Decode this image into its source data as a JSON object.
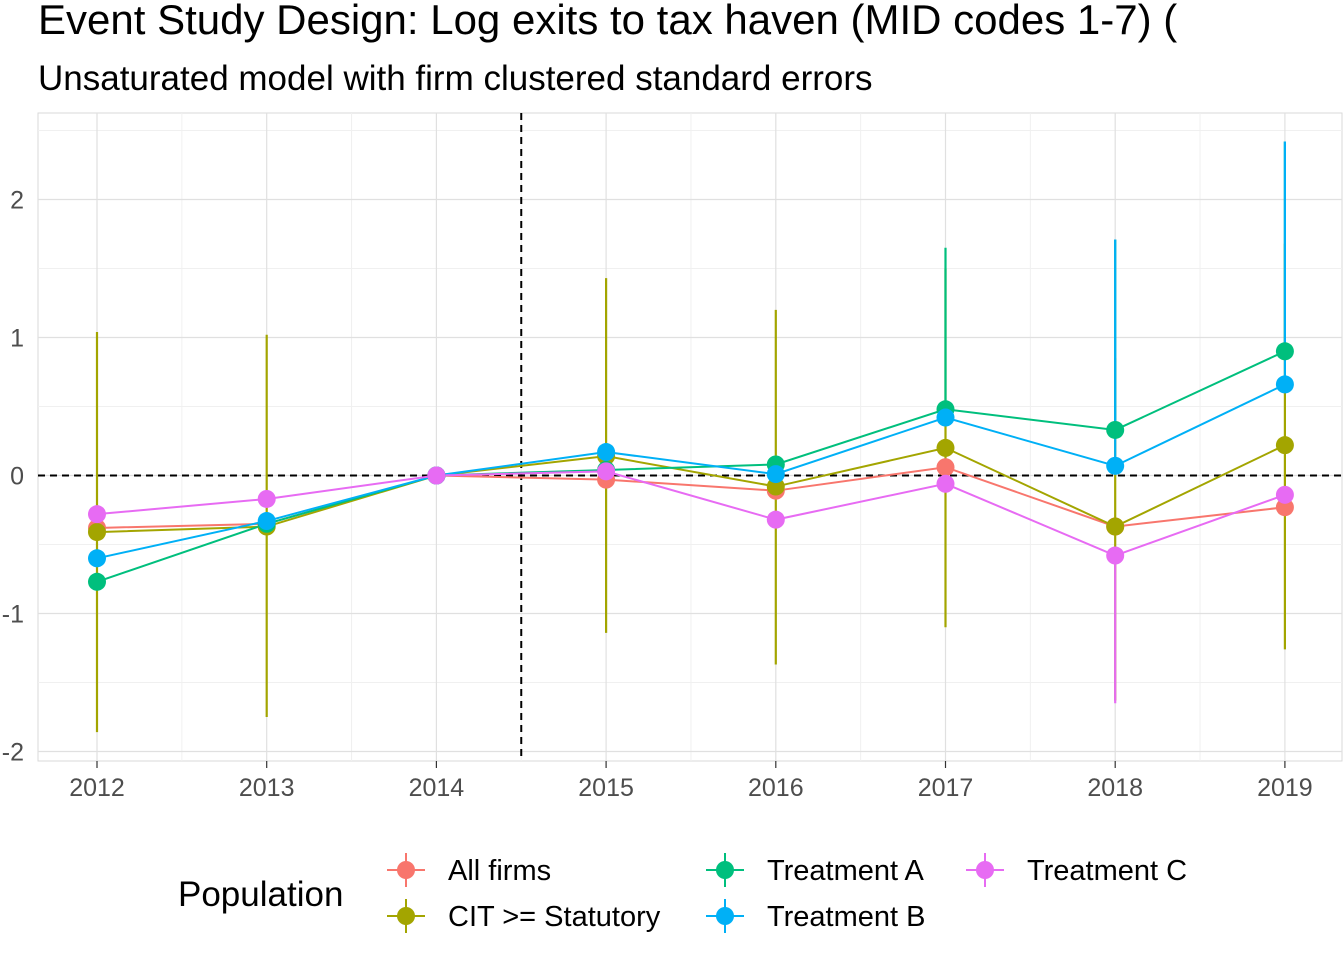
{
  "chart_data": {
    "type": "line",
    "title": "Event Study Design: Log exits to tax haven (MID codes 1-7)  (",
    "subtitle": "Unsaturated model with firm clustered standard errors",
    "xlabel": "",
    "ylabel": "",
    "categories": [
      "2012",
      "2013",
      "2014",
      "2015",
      "2016",
      "2017",
      "2018",
      "2019"
    ],
    "ylim": [
      -2.05,
      2.6
    ],
    "y_ticks": [
      -2,
      -1,
      0,
      1,
      2
    ],
    "y_tick_labels": [
      "-2",
      "-1",
      "0",
      "1",
      "2"
    ],
    "reference_lines": {
      "horizontal_y": 0,
      "vertical_between": [
        "2014",
        "2015"
      ]
    },
    "grid": true,
    "legend": {
      "title": "Population",
      "position": "bottom"
    },
    "series": [
      {
        "name": "All firms",
        "color": "#F8766D",
        "values": [
          -0.38,
          -0.35,
          0,
          -0.03,
          -0.11,
          0.06,
          -0.37,
          -0.23
        ],
        "ci_low": [
          null,
          null,
          null,
          null,
          null,
          null,
          null,
          null
        ],
        "ci_high": [
          null,
          null,
          null,
          null,
          null,
          null,
          null,
          null
        ]
      },
      {
        "name": "CIT >= Statutory",
        "color": "#A3A500",
        "values": [
          -0.41,
          -0.37,
          0,
          0.14,
          -0.08,
          0.2,
          -0.37,
          0.22
        ],
        "ci_low": [
          -1.86,
          -1.75,
          null,
          -1.14,
          -1.37,
          -1.1,
          -1.63,
          -1.26
        ],
        "ci_high": [
          1.04,
          1.02,
          null,
          1.43,
          1.2,
          1.5,
          0.85,
          1.68
        ]
      },
      {
        "name": "Treatment A",
        "color": "#00BF7D",
        "values": [
          -0.77,
          -0.35,
          0,
          0.04,
          0.08,
          0.48,
          0.33,
          0.9
        ],
        "ci_low": [
          null,
          null,
          null,
          null,
          null,
          null,
          null,
          null
        ],
        "ci_high": [
          null,
          null,
          null,
          null,
          null,
          1.65,
          1.71,
          2.42
        ]
      },
      {
        "name": "Treatment B",
        "color": "#00B0F6",
        "values": [
          -0.6,
          -0.33,
          0,
          0.17,
          0.01,
          0.42,
          0.07,
          0.66
        ],
        "ci_low": [
          null,
          null,
          null,
          null,
          null,
          null,
          null,
          null
        ],
        "ci_high": [
          null,
          null,
          null,
          null,
          null,
          null,
          1.71,
          2.42
        ]
      },
      {
        "name": "Treatment C",
        "color": "#E76BF3",
        "values": [
          -0.28,
          -0.17,
          0,
          0.03,
          -0.32,
          -0.06,
          -0.58,
          -0.14
        ],
        "ci_low": [
          null,
          null,
          null,
          null,
          null,
          null,
          -1.65,
          null
        ],
        "ci_high": [
          null,
          null,
          null,
          null,
          null,
          null,
          null,
          null
        ]
      }
    ]
  }
}
